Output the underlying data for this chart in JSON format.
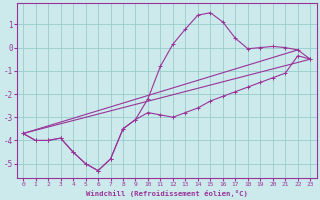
{
  "xlabel": "Windchill (Refroidissement éolien,°C)",
  "bg_color": "#cceaec",
  "grid_color": "#99cccc",
  "line_color": "#993399",
  "spine_color": "#993399",
  "xlim": [
    -0.5,
    23.5
  ],
  "ylim": [
    -5.6,
    1.9
  ],
  "yticks": [
    1,
    0,
    -1,
    -2,
    -3,
    -4,
    -5
  ],
  "xticks": [
    0,
    1,
    2,
    3,
    4,
    5,
    6,
    7,
    8,
    9,
    10,
    11,
    12,
    13,
    14,
    15,
    16,
    17,
    18,
    19,
    20,
    21,
    22,
    23
  ],
  "series": [
    {
      "x": [
        0,
        1,
        2,
        3,
        4,
        5,
        6,
        7,
        8,
        9,
        10,
        11,
        12,
        13,
        14,
        15,
        16,
        17,
        18,
        19,
        20,
        21,
        22,
        23
      ],
      "y": [
        -3.7,
        -4.0,
        -4.0,
        -3.9,
        -4.5,
        -5.0,
        -5.3,
        -4.8,
        -3.5,
        -3.1,
        -2.8,
        -2.9,
        -3.0,
        -2.8,
        -2.6,
        -2.3,
        -2.1,
        -1.9,
        -1.7,
        -1.5,
        -1.3,
        -1.1,
        -0.35,
        -0.5
      ],
      "marker": true
    },
    {
      "x": [
        0,
        1,
        2,
        3,
        4,
        5,
        6,
        7,
        8,
        9,
        10,
        11,
        12,
        13,
        14,
        15,
        16,
        17,
        18,
        19,
        20,
        21,
        22,
        23
      ],
      "y": [
        -3.7,
        -4.0,
        -4.0,
        -3.9,
        -4.5,
        -5.0,
        -5.3,
        -4.8,
        -3.5,
        -3.1,
        -2.2,
        -0.8,
        0.15,
        0.8,
        1.4,
        1.5,
        1.1,
        0.4,
        -0.05,
        0.0,
        0.05,
        0.0,
        -0.1,
        -0.5
      ],
      "marker": true
    },
    {
      "x": [
        0,
        22
      ],
      "y": [
        -3.7,
        -0.1
      ],
      "marker": false
    },
    {
      "x": [
        0,
        23
      ],
      "y": [
        -3.7,
        -0.5
      ],
      "marker": false
    }
  ]
}
